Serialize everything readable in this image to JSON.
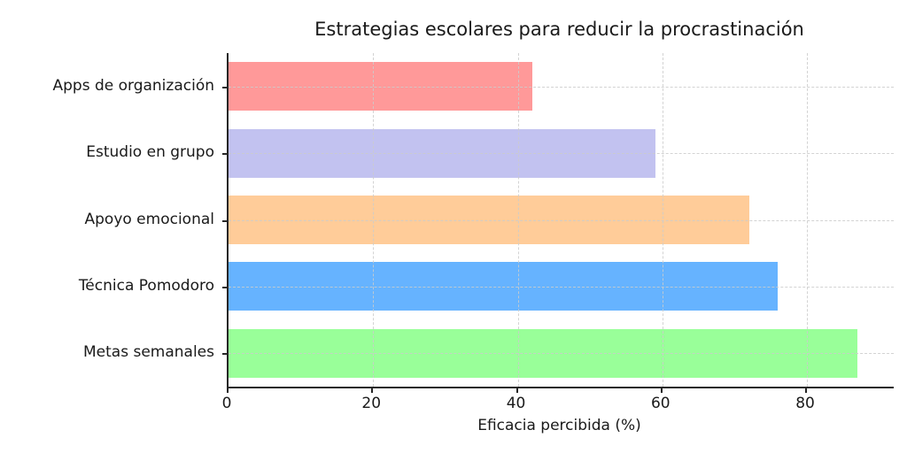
{
  "chart_data": {
    "type": "bar",
    "orientation": "horizontal",
    "title": "Estrategias escolares para reducir la procrastinación",
    "xlabel": "Eficacia percibida (%)",
    "ylabel": "",
    "categories": [
      "Apps de organización",
      "Estudio en grupo",
      "Apoyo emocional",
      "Técnica Pomodoro",
      "Metas semanales"
    ],
    "values": [
      42,
      59,
      72,
      76,
      87
    ],
    "bar_colors": [
      "#ff9999",
      "#c2c2f0",
      "#ffcc99",
      "#66b3ff",
      "#99ff99"
    ],
    "xlim": [
      0,
      92
    ],
    "xticks": [
      0,
      20,
      40,
      60,
      80
    ],
    "grid": true,
    "grid_style": "dashed",
    "grid_color": "#cccccc",
    "legend": "none",
    "spine_color": "#262626",
    "text_color": "#1a1a1a",
    "background": "#ffffff"
  }
}
